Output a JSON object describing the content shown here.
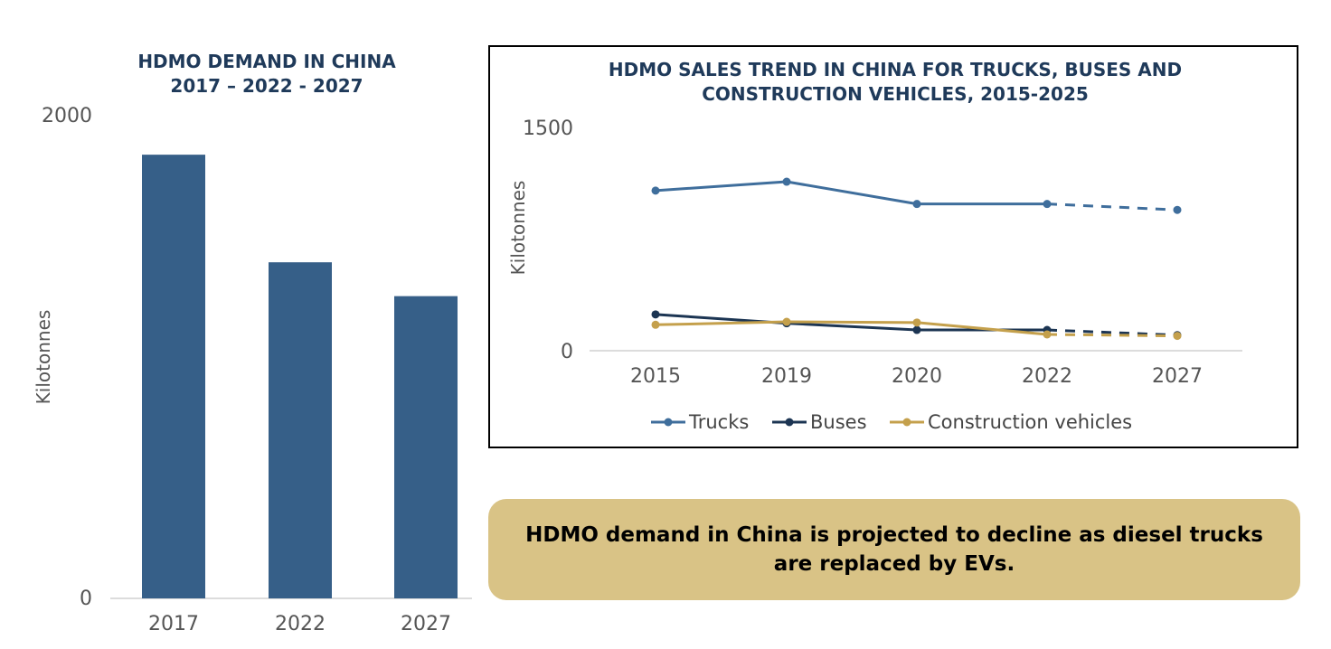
{
  "chart_data": [
    {
      "type": "bar",
      "title_lines": [
        "HDMO DEMAND IN CHINA",
        "2017 – 2022 - 2027"
      ],
      "ylabel": "Kilotonnes",
      "xlabel": "",
      "ylim": [
        0,
        2000
      ],
      "yticks": [
        "2000",
        "0"
      ],
      "categories": [
        "2017",
        "2022",
        "2027"
      ],
      "values": [
        1835,
        1390,
        1250
      ],
      "bar_color": "#365f88"
    },
    {
      "type": "line",
      "title_lines": [
        "HDMO SALES TREND IN CHINA FOR TRUCKS, BUSES AND",
        "CONSTRUCTION VEHICLES, 2015-2025"
      ],
      "ylabel": "Kilotonnes",
      "xlabel": "",
      "ylim": [
        0,
        1500
      ],
      "yticks": [
        "1500",
        "0"
      ],
      "categories": [
        "2015",
        "2019",
        "2020",
        "2022",
        "2027"
      ],
      "projected_from_index": 3,
      "legend_position": "bottom",
      "series": [
        {
          "name": "Trucks",
          "values": [
            1080,
            1140,
            990,
            990,
            950
          ],
          "color": "#3f6e9c"
        },
        {
          "name": "Buses",
          "values": [
            245,
            185,
            140,
            140,
            105
          ],
          "color": "#1c3553"
        },
        {
          "name": "Construction vehicles",
          "values": [
            175,
            195,
            190,
            110,
            100
          ],
          "color": "#c4a04c"
        }
      ]
    }
  ],
  "callout": {
    "text": "HDMO demand in China is projected to decline as diesel trucks are replaced by EVs."
  }
}
